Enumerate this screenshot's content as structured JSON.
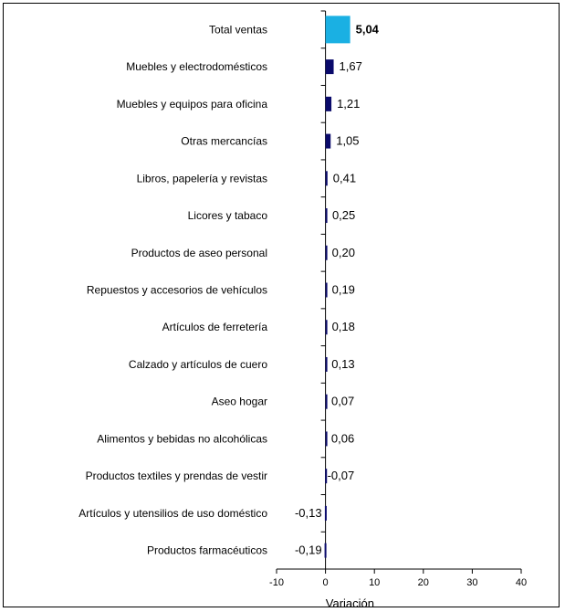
{
  "chart_data": {
    "type": "bar",
    "orientation": "horizontal",
    "categories": [
      "Total ventas",
      "Muebles y electrodomésticos",
      "Muebles y equipos para oficina",
      "Otras mercancías",
      "Libros, papelería y revistas",
      "Licores y tabaco",
      "Productos de aseo personal",
      "Repuestos y accesorios de vehículos",
      "Artículos de ferretería",
      "Calzado y artículos de cuero",
      "Aseo hogar",
      "Alimentos y bebidas no alcohólicas",
      "Productos textiles y prendas de vestir",
      "Artículos y utensilios de uso doméstico",
      "Productos farmacéuticos"
    ],
    "values": [
      5.04,
      1.67,
      1.21,
      1.05,
      0.41,
      0.25,
      0.2,
      0.19,
      0.18,
      0.13,
      0.07,
      0.06,
      -0.07,
      -0.13,
      -0.19
    ],
    "value_labels": [
      "5,04",
      "1,67",
      "1,21",
      "1,05",
      "0,41",
      "0,25",
      "0,20",
      "0,19",
      "0,18",
      "0,13",
      "0,07",
      "0,06",
      "-0,07",
      "-0,13",
      "-0,19"
    ],
    "highlight_index": 0,
    "colors": {
      "highlight": "#1ab0e3",
      "bar": "#0a0a6b"
    },
    "xlabel": "Variación",
    "xlim": [
      -10,
      40
    ],
    "xticks": [
      -10,
      0,
      10,
      20,
      30,
      40
    ],
    "grid": false
  }
}
